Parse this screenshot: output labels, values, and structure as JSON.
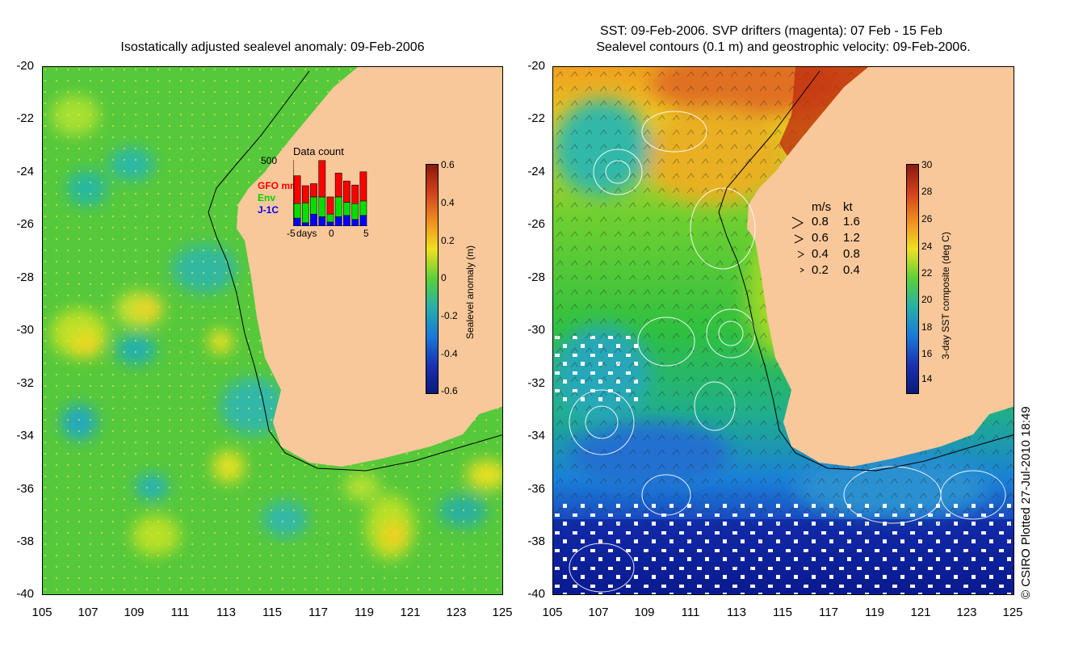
{
  "left_panel": {
    "title": "Isostatically adjusted sealevel anomaly: 09-Feb-2006",
    "colorbar": {
      "label": "Sealevel anomaly (m)",
      "ticks": [
        "0.6",
        "0.4",
        "0.2",
        "0",
        "-0.2",
        "-0.4",
        "-0.6"
      ]
    },
    "inset": {
      "title": "Data count",
      "ymax_label": "500",
      "legend": [
        {
          "name": "GFO mm",
          "color": "#ff0000"
        },
        {
          "name": "Env",
          "color": "#00e000"
        },
        {
          "name": "J-1C",
          "color": "#0000ff"
        }
      ],
      "x_labels": [
        "-5",
        "days",
        "0",
        "5"
      ],
      "bars": [
        {
          "day": -5,
          "gfo": 0.42,
          "env": 0.22,
          "j1c": 0.12
        },
        {
          "day": -4,
          "gfo": 0.26,
          "env": 0.3,
          "j1c": 0.05
        },
        {
          "day": -3,
          "gfo": 0.2,
          "env": 0.26,
          "j1c": 0.18
        },
        {
          "day": -2,
          "gfo": 0.55,
          "env": 0.3,
          "j1c": 0.14
        },
        {
          "day": -1,
          "gfo": 0.26,
          "env": 0.12,
          "j1c": 0.06
        },
        {
          "day": 0,
          "gfo": 0.36,
          "env": 0.3,
          "j1c": 0.14
        },
        {
          "day": 1,
          "gfo": 0.32,
          "env": 0.2,
          "j1c": 0.16
        },
        {
          "day": 2,
          "gfo": 0.28,
          "env": 0.24,
          "j1c": 0.1
        },
        {
          "day": 3,
          "gfo": 0.44,
          "env": 0.22,
          "j1c": 0.16
        }
      ]
    }
  },
  "right_panel": {
    "title_line1": "SST: 09-Feb-2006. SVP drifters (magenta): 07 Feb - 15 Feb",
    "title_line2": "Sealevel contours (0.1 m) and geostrophic velocity: 09-Feb-2006.",
    "colorbar": {
      "label": "3-day SST composite (deg C)",
      "ticks": [
        "30",
        "28",
        "26",
        "24",
        "22",
        "20",
        "18",
        "16",
        "14"
      ]
    },
    "velocity_legend": {
      "header_ms": "m/s",
      "header_kt": "kt",
      "rows": [
        {
          "ms": "0.8",
          "kt": "1.6"
        },
        {
          "ms": "0.6",
          "kt": "1.2"
        },
        {
          "ms": "0.4",
          "kt": "0.8"
        },
        {
          "ms": "0.2",
          "kt": "0.4"
        }
      ]
    },
    "credit": "© CSIRO Plotted 27-Jul-2010 18:49"
  },
  "axes": {
    "lat_labels": [
      "-20",
      "-22",
      "-24",
      "-26",
      "-28",
      "-30",
      "-32",
      "-34",
      "-36",
      "-38",
      "-40"
    ],
    "lon_labels": [
      "105",
      "107",
      "109",
      "111",
      "113",
      "115",
      "117",
      "119",
      "121",
      "123",
      "125"
    ]
  },
  "colors": {
    "land": "#f9c89a",
    "ocean_mid": "#3cc24a",
    "warm": "#c0200c",
    "cold": "#0a1a8a"
  }
}
